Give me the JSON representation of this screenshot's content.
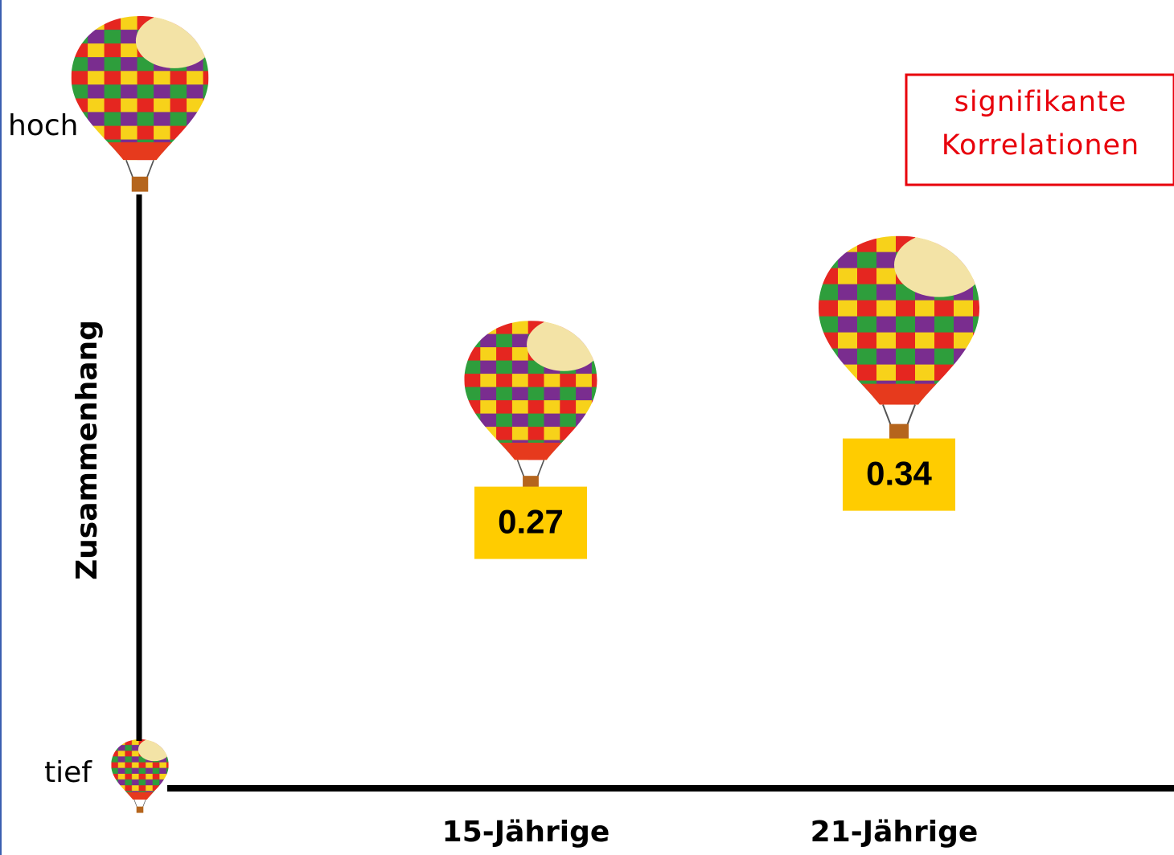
{
  "chart_data": {
    "type": "pictorial",
    "y_axis_label": "Zusammenhang",
    "y_high_label": "hoch",
    "y_low_label": "tief",
    "annotation": "signifikante Korrelationen",
    "categories": [
      "15-Jährige",
      "21-Jährige"
    ],
    "values": [
      0.27,
      0.34
    ],
    "color": "#ffcc00"
  }
}
